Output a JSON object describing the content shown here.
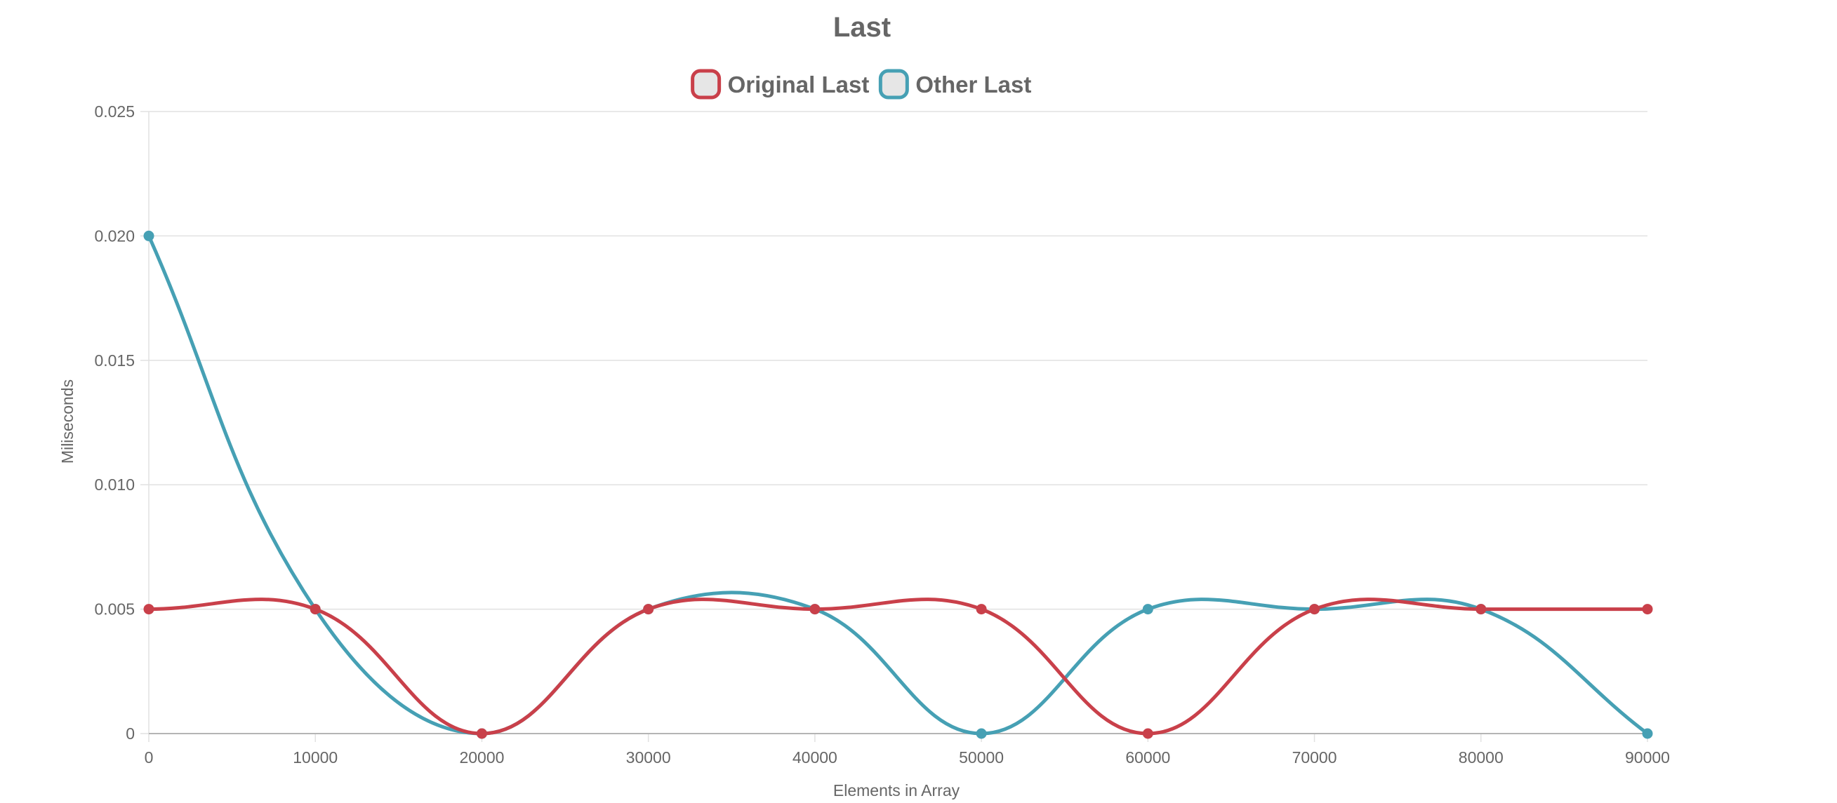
{
  "chart_data": {
    "type": "line",
    "title": "Last",
    "xlabel": "Elements in Array",
    "ylabel": "Miliseconds",
    "x": [
      0,
      10000,
      20000,
      30000,
      40000,
      50000,
      60000,
      70000,
      80000,
      90000
    ],
    "x_tick_labels": [
      "0",
      "10000",
      "20000",
      "30000",
      "40000",
      "50000",
      "60000",
      "70000",
      "80000",
      "90000"
    ],
    "y_ticks": [
      0,
      0.005,
      0.01,
      0.015,
      0.02,
      0.025
    ],
    "y_tick_labels": [
      "0",
      "0.005",
      "0.010",
      "0.015",
      "0.020",
      "0.025"
    ],
    "ylim": [
      0,
      0.025
    ],
    "xlim": [
      0,
      90000
    ],
    "grid": true,
    "legend_position": "top-center",
    "smooth": true,
    "series": [
      {
        "name": "Original Last",
        "color": "#c9404a",
        "values": [
          0.005,
          0.005,
          0,
          0.005,
          0.005,
          0.005,
          0,
          0.005,
          0.005,
          0.005
        ]
      },
      {
        "name": "Other Last",
        "color": "#46a0b4",
        "values": [
          0.02,
          0.005,
          0,
          0.005,
          0.005,
          0,
          0.005,
          0.005,
          0.005,
          0
        ]
      }
    ],
    "legend_fill": "#e6e6e6",
    "grid_color": "#e1e1e1",
    "axis_color": "#b4b4b4"
  }
}
